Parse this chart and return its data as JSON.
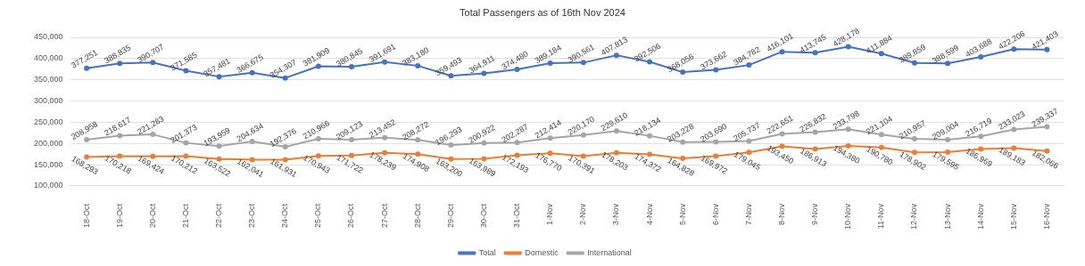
{
  "chart_data": {
    "type": "line",
    "title": "Total Passengers as of 16th Nov 2024",
    "categories": [
      "18-Oct",
      "19-Oct",
      "20-Oct",
      "21-Oct",
      "22-Oct",
      "23-Oct",
      "24-Oct",
      "25-Oct",
      "26-Oct",
      "27-Oct",
      "28-Oct",
      "29-Oct",
      "30-Oct",
      "31-Oct",
      "1-Nov",
      "2-Nov",
      "3-Nov",
      "4-Nov",
      "5-Nov",
      "6-Nov",
      "7-Nov",
      "8-Nov",
      "9-Nov",
      "10-Nov",
      "11-Nov",
      "12-Nov",
      "13-Nov",
      "14-Nov",
      "15-Nov",
      "16-Nov"
    ],
    "series": [
      {
        "name": "Total",
        "color": "#4472c4",
        "values": [
          377251,
          388835,
          390707,
          371585,
          357481,
          366675,
          354307,
          381909,
          380845,
          391691,
          383180,
          359493,
          364911,
          374480,
          389184,
          390561,
          407813,
          392506,
          368056,
          373662,
          384782,
          416101,
          413745,
          428178,
          411884,
          389859,
          388599,
          403688,
          422206,
          421403
        ],
        "value_labels": [
          "377,251",
          "388,835",
          "390,707",
          "371,585",
          "357,481",
          "366,675",
          "354,307",
          "381,909",
          "380,845",
          "391,691",
          "383,180",
          "359,493",
          "364,911",
          "374,480",
          "389,184",
          "390,561",
          "407,813",
          "392,506",
          "368,056",
          "373,662",
          "384,782",
          "416,101",
          "413,745",
          "428,178",
          "411,884",
          "389,859",
          "388,599",
          "403,688",
          "422,206",
          "421,403"
        ]
      },
      {
        "name": "Domestic",
        "color": "#ed7d31",
        "values": [
          168293,
          170218,
          169424,
          170212,
          163522,
          162041,
          161931,
          170943,
          171722,
          178239,
          174908,
          163200,
          163989,
          172193,
          176770,
          170391,
          178203,
          174372,
          164828,
          169972,
          179045,
          193450,
          186913,
          194380,
          190780,
          178902,
          179595,
          186969,
          189183,
          182066
        ],
        "value_labels": [
          "168,293",
          "170,218",
          "169,424",
          "170,212",
          "163,522",
          "162,041",
          "161,931",
          "170,943",
          "171,722",
          "178,239",
          "174,908",
          "163,200",
          "163,989",
          "172,193",
          "176,770",
          "170,391",
          "178,203",
          "174,372",
          "164,828",
          "169,972",
          "179,045",
          "193,450",
          "186,913",
          "194,380",
          "190,780",
          "178,902",
          "179,595",
          "186,969",
          "189,183",
          "182,066"
        ]
      },
      {
        "name": "International",
        "color": "#a5a5a5",
        "values": [
          208958,
          218617,
          221283,
          201373,
          193959,
          204634,
          192376,
          210966,
          209123,
          213452,
          208272,
          196293,
          200922,
          202287,
          212414,
          220170,
          229610,
          218134,
          203228,
          203690,
          205737,
          222651,
          226832,
          233798,
          221104,
          210957,
          209004,
          216719,
          233023,
          239337
        ],
        "value_labels": [
          "208,958",
          "218,617",
          "221,283",
          "201,373",
          "193,959",
          "204,634",
          "192,376",
          "210,966",
          "209,123",
          "213,452",
          "208,272",
          "196,293",
          "200,922",
          "202,287",
          "212,414",
          "220,170",
          "229,610",
          "218,134",
          "203,228",
          "203,690",
          "205,737",
          "222,651",
          "226,832",
          "233,798",
          "221,104",
          "210,957",
          "209,004",
          "216,719",
          "233,023",
          "239,337"
        ]
      }
    ],
    "ylim": [
      100000,
      450000
    ],
    "yticks": [
      {
        "value": 100000,
        "label": "100,000"
      },
      {
        "value": 150000,
        "label": "150,000"
      },
      {
        "value": 200000,
        "label": "200,000"
      },
      {
        "value": 250000,
        "label": "250,000"
      },
      {
        "value": 300000,
        "label": "300,000"
      },
      {
        "value": 350000,
        "label": "350,000"
      },
      {
        "value": 400000,
        "label": "400,000"
      },
      {
        "value": 450000,
        "label": "450,000"
      }
    ],
    "grid": "y",
    "legend": "bottom",
    "marker": "circle",
    "line_style": "solid"
  }
}
